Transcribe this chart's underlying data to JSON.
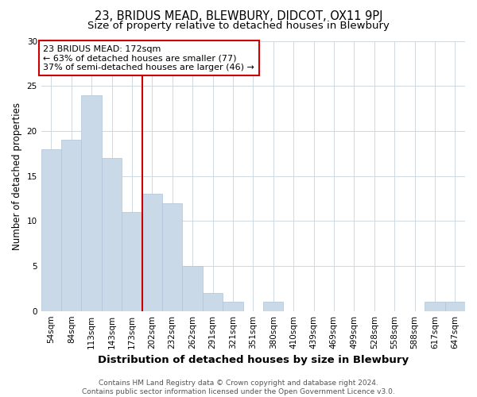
{
  "title": "23, BRIDUS MEAD, BLEWBURY, DIDCOT, OX11 9PJ",
  "subtitle": "Size of property relative to detached houses in Blewbury",
  "xlabel": "Distribution of detached houses by size in Blewbury",
  "ylabel": "Number of detached properties",
  "categories": [
    "54sqm",
    "84sqm",
    "113sqm",
    "143sqm",
    "173sqm",
    "202sqm",
    "232sqm",
    "262sqm",
    "291sqm",
    "321sqm",
    "351sqm",
    "380sqm",
    "410sqm",
    "439sqm",
    "469sqm",
    "499sqm",
    "528sqm",
    "558sqm",
    "588sqm",
    "617sqm",
    "647sqm"
  ],
  "values": [
    18,
    19,
    24,
    17,
    11,
    13,
    12,
    5,
    2,
    1,
    0,
    1,
    0,
    0,
    0,
    0,
    0,
    0,
    0,
    1,
    1
  ],
  "bar_color": "#c9d9e8",
  "bar_edge_color": "#b0c4d8",
  "vline_x_idx": 4,
  "vline_color": "#cc0000",
  "annotation_text": "23 BRIDUS MEAD: 172sqm\n← 63% of detached houses are smaller (77)\n37% of semi-detached houses are larger (46) →",
  "annotation_box_color": "#cc0000",
  "ylim": [
    0,
    30
  ],
  "yticks": [
    0,
    5,
    10,
    15,
    20,
    25,
    30
  ],
  "footer": "Contains HM Land Registry data © Crown copyright and database right 2024.\nContains public sector information licensed under the Open Government Licence v3.0.",
  "bg_color": "#ffffff",
  "plot_bg_color": "#ffffff",
  "grid_color": "#d0d8e0",
  "title_fontsize": 10.5,
  "subtitle_fontsize": 9.5,
  "xlabel_fontsize": 9.5,
  "ylabel_fontsize": 8.5,
  "tick_fontsize": 7.5,
  "ann_fontsize": 8,
  "footer_fontsize": 6.5
}
